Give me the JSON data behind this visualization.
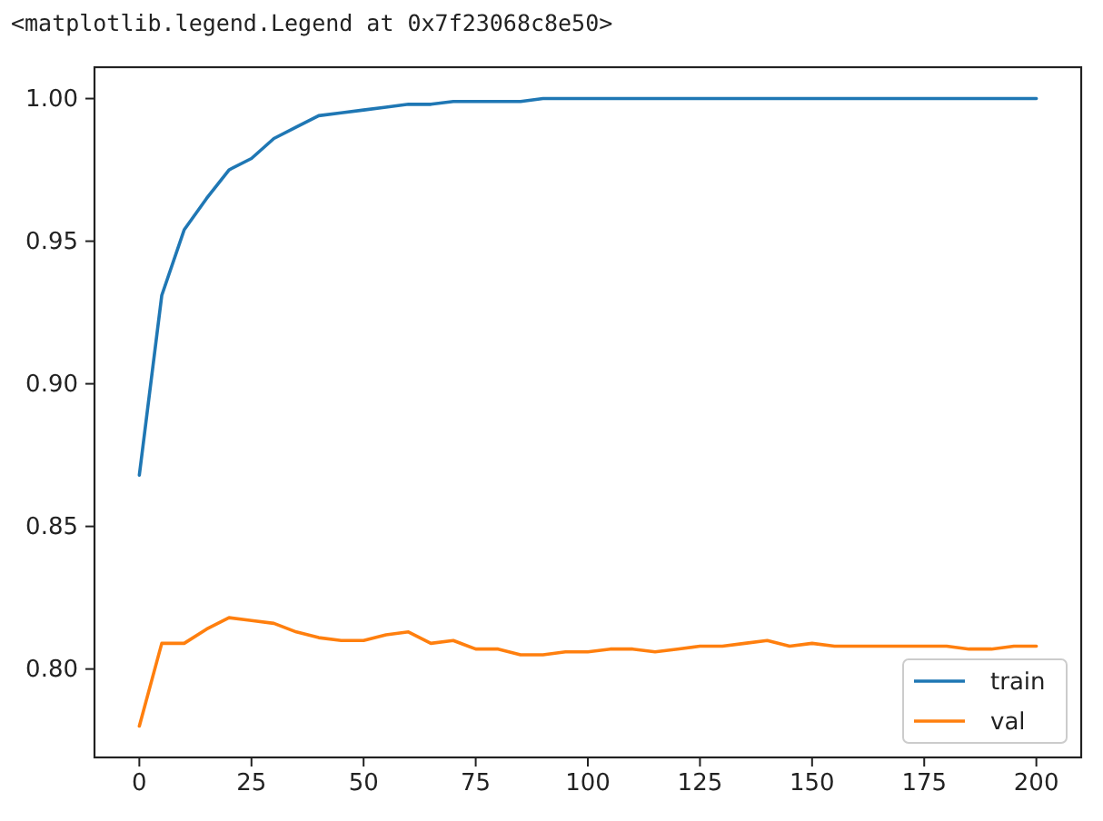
{
  "chart_data": {
    "type": "line",
    "annotations": [
      "<matplotlib.legend.Legend at 0x7f23068c8e50>"
    ],
    "x": [
      0,
      5,
      10,
      15,
      20,
      25,
      30,
      35,
      40,
      45,
      50,
      55,
      60,
      65,
      70,
      75,
      80,
      85,
      90,
      95,
      100,
      105,
      110,
      115,
      120,
      125,
      130,
      135,
      140,
      145,
      150,
      155,
      160,
      165,
      170,
      175,
      180,
      185,
      190,
      195,
      200
    ],
    "xlim": [
      -10,
      210
    ],
    "xticks": [
      0,
      25,
      50,
      75,
      100,
      125,
      150,
      175,
      200
    ],
    "ylim": [
      0.769,
      1.011
    ],
    "yticks": [
      {
        "value": 0.8,
        "label": "0.80"
      },
      {
        "value": 0.85,
        "label": "0.85"
      },
      {
        "value": 0.9,
        "label": "0.90"
      },
      {
        "value": 0.95,
        "label": "0.95"
      },
      {
        "value": 1.0,
        "label": "1.00"
      }
    ],
    "series": [
      {
        "name": "train",
        "color": "#1f77b4",
        "values": [
          0.868,
          0.931,
          0.954,
          0.965,
          0.975,
          0.979,
          0.986,
          0.99,
          0.994,
          0.995,
          0.996,
          0.997,
          0.998,
          0.998,
          0.999,
          0.999,
          0.999,
          0.999,
          1.0,
          1.0,
          1.0,
          1.0,
          1.0,
          1.0,
          1.0,
          1.0,
          1.0,
          1.0,
          1.0,
          1.0,
          1.0,
          1.0,
          1.0,
          1.0,
          1.0,
          1.0,
          1.0,
          1.0,
          1.0,
          1.0,
          1.0
        ]
      },
      {
        "name": "val",
        "color": "#ff7f0e",
        "values": [
          0.78,
          0.809,
          0.809,
          0.814,
          0.818,
          0.817,
          0.816,
          0.813,
          0.811,
          0.81,
          0.81,
          0.812,
          0.813,
          0.809,
          0.81,
          0.807,
          0.807,
          0.805,
          0.805,
          0.806,
          0.806,
          0.807,
          0.807,
          0.806,
          0.807,
          0.808,
          0.808,
          0.809,
          0.81,
          0.808,
          0.809,
          0.808,
          0.808,
          0.808,
          0.808,
          0.808,
          0.808,
          0.807,
          0.807,
          0.808,
          0.808
        ]
      }
    ],
    "legend": "lower right"
  }
}
